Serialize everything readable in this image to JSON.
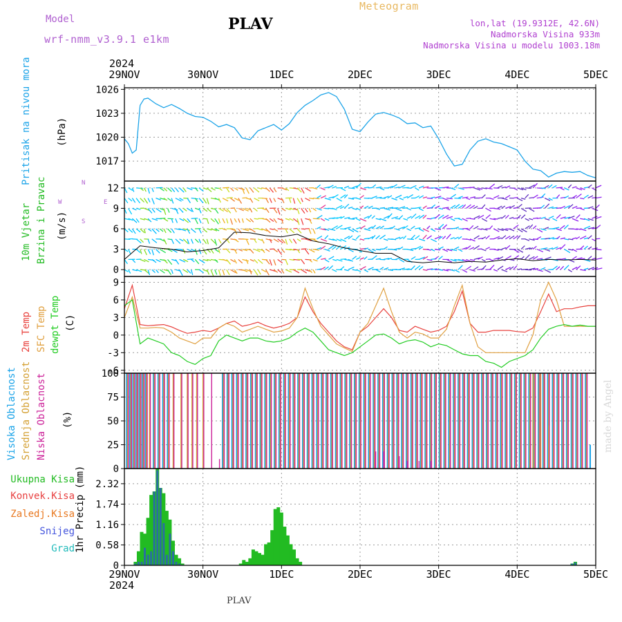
{
  "header": {
    "model_label": "Model",
    "model_value": "wrf-nmm_v3.9.1 e1km",
    "title": "PLAV",
    "meteogram": "Meteogram",
    "lonlat": "lon,lat (19.9312E, 42.6N)",
    "elevation": "Nadmorska Visina 933m",
    "model_elevation": "Nadmorska Visina u modelu 1003.18m",
    "year": "2024",
    "footer_station": "PLAV",
    "watermark": "made by Angel"
  },
  "colors": {
    "pressure": "#1aa3e8",
    "wind_label": "#22bb22",
    "temp2m": "#e8403c",
    "sfc": "#e0a040",
    "dew": "#22cc22",
    "high_cloud": "#1aa3e8",
    "mid_cloud": "#d4a033",
    "low_cloud": "#cc2299",
    "precip_total": "#22bb22",
    "precip_conv": "#e84040",
    "precip_frozen": "#e87820",
    "precip_snow": "#4455dd",
    "precip_hail": "#22bbbb",
    "grid": "#999999",
    "axis": "#000000"
  },
  "time_axis": {
    "labels": [
      "29NOV",
      "30NOV",
      "1DEC",
      "2DEC",
      "3DEC",
      "4DEC",
      "5DEC"
    ],
    "year": "2024"
  },
  "chart_data": [
    {
      "type": "line",
      "name": "pressure",
      "ylabel": "Pritisak na nivou mora",
      "unit": "(hPa)",
      "ylim": [
        1014.5,
        1026.2
      ],
      "yticks": [
        1017,
        1020,
        1023,
        1026
      ],
      "x_days": [
        0,
        0.05,
        0.1,
        0.15,
        0.2,
        0.25,
        0.3,
        0.4,
        0.5,
        0.6,
        0.7,
        0.8,
        0.9,
        1.0,
        1.1,
        1.2,
        1.3,
        1.4,
        1.5,
        1.6,
        1.7,
        1.8,
        1.9,
        2.0,
        2.1,
        2.2,
        2.3,
        2.4,
        2.5,
        2.6,
        2.7,
        2.8,
        2.9,
        3.0,
        3.1,
        3.2,
        3.3,
        3.4,
        3.5,
        3.6,
        3.7,
        3.8,
        3.9,
        4.0,
        4.1,
        4.2,
        4.3,
        4.4,
        4.5,
        4.6,
        4.7,
        4.8,
        4.9,
        5.0,
        5.1,
        5.2,
        5.3,
        5.4,
        5.5,
        5.6,
        5.7,
        5.8,
        5.9,
        6.0
      ],
      "values": [
        1019.8,
        1019.2,
        1018.0,
        1018.4,
        1024.0,
        1024.8,
        1024.9,
        1024.2,
        1023.7,
        1024.1,
        1023.6,
        1023.0,
        1022.6,
        1022.5,
        1022.0,
        1021.3,
        1021.6,
        1021.2,
        1019.9,
        1019.7,
        1020.8,
        1021.2,
        1021.6,
        1020.9,
        1021.7,
        1023.1,
        1024.0,
        1024.6,
        1025.3,
        1025.6,
        1025.1,
        1023.5,
        1021.0,
        1020.7,
        1021.9,
        1022.9,
        1023.1,
        1022.8,
        1022.4,
        1021.7,
        1021.8,
        1021.2,
        1021.4,
        1019.8,
        1017.9,
        1016.4,
        1016.6,
        1018.4,
        1019.5,
        1019.8,
        1019.4,
        1019.2,
        1018.8,
        1018.4,
        1017.0,
        1016.0,
        1015.8,
        1015.0,
        1015.5,
        1015.7,
        1015.6,
        1015.7,
        1015.2,
        1014.9
      ]
    },
    {
      "type": "scatter",
      "name": "wind",
      "ylabel_1": "10m Vjetar",
      "ylabel_2": "Brzina i Pravac",
      "unit": "(m/s)",
      "compass": [
        "N",
        "W",
        "E",
        "S"
      ],
      "ylim": [
        -1,
        13
      ],
      "yticks": [
        0,
        3,
        6,
        9,
        12
      ],
      "x_days": [
        0,
        0.2,
        0.4,
        0.6,
        0.8,
        1.0,
        1.2,
        1.4,
        1.6,
        1.8,
        2.0,
        2.2,
        2.4,
        2.6,
        2.8,
        3.0,
        3.2,
        3.4,
        3.6,
        3.8,
        4.0,
        4.2,
        4.4,
        4.6,
        4.8,
        5.0,
        5.2,
        5.4,
        5.6,
        5.8,
        6.0
      ],
      "speed": [
        1.5,
        3.5,
        3.2,
        3.0,
        2.6,
        2.8,
        3.2,
        5.5,
        5.4,
        5.0,
        4.8,
        5.2,
        4.2,
        3.8,
        3.2,
        2.8,
        2.4,
        2.4,
        1.2,
        1.0,
        1.2,
        1.0,
        1.2,
        1.1,
        1.4,
        1.6,
        1.3,
        1.5,
        1.4,
        1.5,
        1.4
      ]
    },
    {
      "type": "line",
      "name": "temperature",
      "ylabel_1": "2m Temp",
      "ylabel_2": "SFC Temp",
      "ylabel_3": "dewpt Temp",
      "unit": "(C)",
      "ylim": [
        -6.5,
        10
      ],
      "yticks": [
        -6,
        -3,
        0,
        3,
        6,
        9
      ],
      "x_days": [
        0,
        0.1,
        0.2,
        0.3,
        0.4,
        0.5,
        0.6,
        0.7,
        0.8,
        0.9,
        1.0,
        1.1,
        1.2,
        1.3,
        1.4,
        1.5,
        1.6,
        1.7,
        1.8,
        1.9,
        2.0,
        2.1,
        2.2,
        2.3,
        2.4,
        2.5,
        2.6,
        2.7,
        2.8,
        2.9,
        3.0,
        3.1,
        3.2,
        3.3,
        3.4,
        3.5,
        3.6,
        3.7,
        3.8,
        3.9,
        4.0,
        4.1,
        4.2,
        4.3,
        4.4,
        4.5,
        4.6,
        4.7,
        4.8,
        4.9,
        5.0,
        5.1,
        5.2,
        5.3,
        5.4,
        5.5,
        5.6,
        5.7,
        5.8,
        5.9,
        6.0
      ],
      "series": [
        {
          "name": "2m Temp",
          "values": [
            4.5,
            8.5,
            1.8,
            1.6,
            1.7,
            1.8,
            1.4,
            0.8,
            0.3,
            0.5,
            0.8,
            0.6,
            1.2,
            2.0,
            2.4,
            1.5,
            1.8,
            2.2,
            1.6,
            1.2,
            1.5,
            2.0,
            3.0,
            6.5,
            4.0,
            2.0,
            0.5,
            -1.0,
            -2.0,
            -2.5,
            0.5,
            1.5,
            3.0,
            4.5,
            3.0,
            0.8,
            0.5,
            1.5,
            1.0,
            0.5,
            0.8,
            1.5,
            4.0,
            7.5,
            2.0,
            0.5,
            0.5,
            0.8,
            0.8,
            0.8,
            0.6,
            0.5,
            1.2,
            4.0,
            7.0,
            4.0,
            4.5,
            4.5,
            4.8,
            5.0,
            5.0
          ]
        },
        {
          "name": "SFC Temp",
          "values": [
            3.0,
            6.5,
            1.2,
            1.2,
            1.3,
            1.2,
            0.5,
            -0.5,
            -1.0,
            -1.5,
            -0.5,
            -0.5,
            1.2,
            2.0,
            1.5,
            0.5,
            1.0,
            1.5,
            1.0,
            0.5,
            0.7,
            1.2,
            3.0,
            8.0,
            4.5,
            1.5,
            0.0,
            -1.5,
            -2.2,
            -2.8,
            0.5,
            2.0,
            5.0,
            8.0,
            4.0,
            0.5,
            -0.5,
            0.5,
            0.2,
            -0.5,
            -0.5,
            1.0,
            5.0,
            8.5,
            2.0,
            -2.0,
            -3.0,
            -3.0,
            -3.0,
            -3.0,
            -3.0,
            -3.0,
            0.0,
            6.0,
            9.0,
            6.0,
            1.5,
            1.5,
            1.5,
            1.5,
            1.5
          ]
        },
        {
          "name": "dewpt Temp",
          "values": [
            5.0,
            6.0,
            -1.5,
            -0.5,
            -1.0,
            -1.5,
            -3.0,
            -3.5,
            -4.5,
            -5.0,
            -4.0,
            -3.5,
            -1.0,
            0.0,
            -0.5,
            -1.0,
            -0.5,
            -0.5,
            -1.0,
            -1.2,
            -1.0,
            -0.5,
            0.5,
            1.2,
            0.5,
            -1.0,
            -2.5,
            -3.0,
            -3.5,
            -3.0,
            -2.0,
            -1.0,
            0.0,
            0.2,
            -0.5,
            -1.5,
            -1.0,
            -0.8,
            -1.2,
            -2.0,
            -1.5,
            -1.8,
            -2.5,
            -3.2,
            -3.5,
            -3.5,
            -4.5,
            -4.8,
            -5.5,
            -4.5,
            -4.0,
            -3.5,
            -2.5,
            -0.5,
            1.0,
            1.5,
            1.8,
            1.5,
            1.7,
            1.5,
            1.5
          ]
        }
      ]
    },
    {
      "type": "bar",
      "name": "cloud",
      "ylabel_1": "Visoka Oblacnost",
      "ylabel_2": "Srednja Oblacnost",
      "ylabel_3": "Niska Oblacnost",
      "unit": "(%)",
      "ylim": [
        0,
        100
      ],
      "yticks": [
        0,
        25,
        50,
        75,
        100
      ],
      "x_days": [
        0.04,
        0.08,
        0.12,
        0.16,
        0.2,
        0.24,
        0.28,
        0.32,
        0.38,
        0.44,
        0.5,
        0.56,
        0.62,
        0.72,
        0.8,
        0.86,
        0.92,
        1.0,
        1.1,
        1.2,
        1.26,
        1.32,
        1.38,
        1.44,
        1.5,
        1.56,
        1.62,
        1.68,
        1.74,
        1.8,
        1.86,
        1.92,
        1.98,
        2.04,
        2.1,
        2.16,
        2.22,
        2.28,
        2.34,
        2.4,
        2.46,
        2.52,
        2.58,
        2.64,
        2.7,
        2.76,
        2.82,
        2.88,
        2.94,
        3.0,
        3.06,
        3.12,
        3.18,
        3.24,
        3.3,
        3.36,
        3.42,
        3.48,
        3.54,
        3.6,
        3.66,
        3.72,
        3.78,
        3.84,
        3.9,
        3.96,
        4.02,
        4.08,
        4.14,
        4.2,
        4.26,
        4.32,
        4.38,
        4.44,
        4.5,
        4.56,
        4.62,
        4.68,
        4.74,
        4.8,
        4.86,
        4.92,
        4.98,
        5.04,
        5.1,
        5.16,
        5.22,
        5.28,
        5.34,
        5.4,
        5.46,
        5.52,
        5.58,
        5.64,
        5.7,
        5.76,
        5.82,
        5.88,
        5.94
      ],
      "series": [
        {
          "name": "Visoka Oblacnost",
          "values": [
            100,
            100,
            100,
            100,
            100,
            100,
            100,
            0,
            100,
            100,
            100,
            100,
            0,
            0,
            0,
            0,
            0,
            0,
            0,
            0,
            100,
            100,
            100,
            100,
            100,
            100,
            100,
            100,
            100,
            100,
            100,
            100,
            100,
            100,
            100,
            100,
            100,
            100,
            100,
            100,
            100,
            100,
            100,
            100,
            100,
            100,
            100,
            100,
            100,
            100,
            100,
            100,
            100,
            100,
            100,
            100,
            100,
            100,
            100,
            100,
            100,
            100,
            100,
            100,
            100,
            100,
            100,
            100,
            100,
            100,
            100,
            100,
            100,
            100,
            100,
            100,
            100,
            100,
            100,
            100,
            100,
            100,
            100,
            100,
            100,
            100,
            100,
            100,
            100,
            100,
            100,
            100,
            100,
            100,
            100,
            100,
            100,
            100,
            25
          ]
        },
        {
          "name": "Srednja Oblacnost",
          "values": [
            100,
            100,
            100,
            100,
            100,
            100,
            100,
            100,
            100,
            100,
            100,
            100,
            100,
            100,
            100,
            100,
            100,
            100,
            0,
            0,
            100,
            100,
            100,
            100,
            100,
            100,
            100,
            100,
            100,
            100,
            100,
            100,
            100,
            100,
            100,
            100,
            100,
            100,
            100,
            100,
            100,
            100,
            100,
            100,
            100,
            100,
            100,
            100,
            100,
            100,
            100,
            100,
            100,
            100,
            100,
            100,
            100,
            100,
            100,
            100,
            100,
            100,
            100,
            100,
            100,
            100,
            100,
            100,
            100,
            100,
            100,
            100,
            100,
            100,
            100,
            100,
            100,
            100,
            100,
            100,
            100,
            100,
            100,
            100,
            100,
            100,
            100,
            100,
            100,
            100,
            100,
            100,
            100,
            100,
            100,
            100,
            100,
            100,
            0
          ]
        },
        {
          "name": "Niska Oblacnost",
          "values": [
            100,
            100,
            100,
            100,
            100,
            100,
            100,
            100,
            100,
            100,
            100,
            100,
            100,
            100,
            100,
            100,
            100,
            100,
            100,
            10,
            100,
            100,
            100,
            100,
            100,
            100,
            100,
            100,
            100,
            100,
            100,
            100,
            100,
            100,
            100,
            100,
            100,
            100,
            100,
            100,
            100,
            100,
            100,
            100,
            100,
            100,
            100,
            100,
            100,
            100,
            100,
            100,
            100,
            100,
            100,
            100,
            100,
            100,
            100,
            100,
            100,
            100,
            100,
            100,
            100,
            100,
            100,
            100,
            100,
            100,
            100,
            100,
            100,
            100,
            100,
            100,
            100,
            100,
            100,
            100,
            100,
            100,
            100,
            100,
            100,
            100,
            100,
            100,
            100,
            100,
            100,
            100,
            100,
            100,
            100,
            100,
            100,
            100,
            0
          ]
        }
      ],
      "extra_low_bars": {
        "x_days": [
          3.2,
          3.3,
          3.5,
          3.6,
          3.75,
          3.85,
          3.9
        ],
        "values": [
          18,
          18,
          13,
          8,
          8,
          8,
          8
        ]
      },
      "extra_mid_bars": {
        "x_days": [
          5.2,
          5.3,
          5.4
        ],
        "values": [
          100,
          100,
          45
        ]
      }
    },
    {
      "type": "bar",
      "name": "precipitation",
      "legend": [
        "Ukupna Kisa",
        "Konvek.Kisa",
        "Zaledj.Kisa",
        "Snijeg",
        "Grad"
      ],
      "ylabel": "1hr Precip (mm)",
      "ylim": [
        0,
        2.75
      ],
      "yticks": [
        0,
        0.58,
        1.16,
        1.74,
        2.32
      ],
      "ytick_labels": [
        "0",
        "0.58",
        "1.16",
        "1.74",
        "2.32"
      ],
      "x_days": [
        0.14,
        0.18,
        0.22,
        0.26,
        0.3,
        0.34,
        0.38,
        0.42,
        0.46,
        0.5,
        0.54,
        0.58,
        0.62,
        0.66,
        0.7,
        0.74,
        1.48,
        1.52,
        1.56,
        1.6,
        1.64,
        1.68,
        1.72,
        1.76,
        1.8,
        1.84,
        1.88,
        1.92,
        1.96,
        2.0,
        2.04,
        2.08,
        2.12,
        2.16,
        2.2,
        2.24,
        5.7,
        5.74
      ],
      "series": [
        {
          "name": "Ukupna Kisa",
          "values": [
            0.1,
            0.4,
            0.95,
            0.9,
            1.35,
            2.0,
            2.1,
            2.75,
            2.2,
            2.05,
            1.55,
            1.3,
            0.7,
            0.3,
            0.2,
            0.05,
            0.05,
            0.15,
            0.1,
            0.2,
            0.45,
            0.4,
            0.35,
            0.3,
            0.6,
            0.65,
            1.0,
            1.6,
            1.65,
            1.5,
            1.1,
            0.85,
            0.6,
            0.45,
            0.2,
            0.1,
            0.05,
            0.1
          ]
        },
        {
          "name": "Snijeg",
          "values": [
            0.05,
            0.1,
            0.1,
            0.5,
            0.3,
            0.4,
            2.1,
            2.7,
            2.2,
            1.2,
            0.3,
            0.9,
            0.4,
            0.1,
            0.05,
            0.02,
            0,
            0,
            0,
            0,
            0,
            0,
            0,
            0,
            0,
            0,
            0,
            0,
            0,
            0,
            0,
            0,
            0,
            0,
            0,
            0,
            0.05,
            0.08
          ]
        }
      ]
    }
  ]
}
